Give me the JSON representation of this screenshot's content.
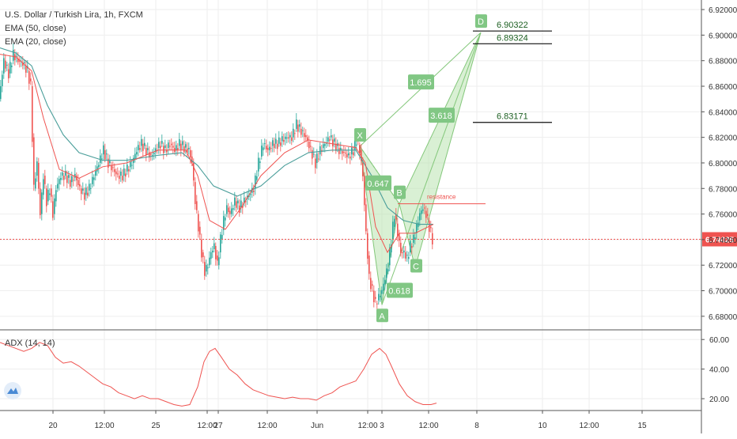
{
  "chart_data": {
    "type": "candlestick",
    "title": "U.S. Dollar / Turkish Lira, 1h, FXCM",
    "indicators": [
      "EMA (50, close)",
      "EMA (20, close)"
    ],
    "price_axis": {
      "ylim": [
        6.67,
        6.925
      ],
      "ticks": [
        "6.92000",
        "6.90000",
        "6.88000",
        "6.86000",
        "6.84000",
        "6.82000",
        "6.80000",
        "6.78000",
        "6.76000",
        "6.74000",
        "6.72000",
        "6.70000",
        "6.68000"
      ],
      "tick_values": [
        6.92,
        6.9,
        6.88,
        6.86,
        6.84,
        6.82,
        6.8,
        6.78,
        6.76,
        6.74,
        6.72,
        6.7,
        6.68
      ]
    },
    "time_axis": {
      "labels": [
        "20",
        "12:00",
        "25",
        "12:00",
        "27",
        "12:00",
        "Jun",
        "12:00",
        "3",
        "12:00",
        "8",
        "10",
        "12:00",
        "15"
      ],
      "label_index": [
        67,
        132,
        197,
        262,
        276,
        338,
        401,
        465,
        483,
        542,
        603,
        686,
        745,
        812
      ],
      "x_domain": [
        0,
        932
      ]
    },
    "last_price": {
      "value": 6.74025,
      "label": "6.74025",
      "color": "#ef5350"
    },
    "candles_close_path": [
      [
        0,
        6.85
      ],
      [
        6,
        6.88
      ],
      [
        12,
        6.87
      ],
      [
        18,
        6.885
      ],
      [
        24,
        6.88
      ],
      [
        30,
        6.878
      ],
      [
        36,
        6.872
      ],
      [
        40,
        6.86
      ],
      [
        44,
        6.78
      ],
      [
        48,
        6.8
      ],
      [
        52,
        6.76
      ],
      [
        56,
        6.79
      ],
      [
        60,
        6.77
      ],
      [
        64,
        6.78
      ],
      [
        68,
        6.76
      ],
      [
        72,
        6.78
      ],
      [
        78,
        6.79
      ],
      [
        84,
        6.79
      ],
      [
        90,
        6.785
      ],
      [
        96,
        6.79
      ],
      [
        102,
        6.78
      ],
      [
        108,
        6.775
      ],
      [
        114,
        6.78
      ],
      [
        120,
        6.79
      ],
      [
        126,
        6.8
      ],
      [
        132,
        6.81
      ],
      [
        138,
        6.8
      ],
      [
        144,
        6.795
      ],
      [
        150,
        6.79
      ],
      [
        156,
        6.79
      ],
      [
        162,
        6.795
      ],
      [
        168,
        6.8
      ],
      [
        174,
        6.81
      ],
      [
        180,
        6.815
      ],
      [
        186,
        6.81
      ],
      [
        192,
        6.805
      ],
      [
        198,
        6.81
      ],
      [
        204,
        6.815
      ],
      [
        210,
        6.81
      ],
      [
        216,
        6.815
      ],
      [
        222,
        6.81
      ],
      [
        228,
        6.815
      ],
      [
        234,
        6.812
      ],
      [
        240,
        6.81
      ],
      [
        244,
        6.8
      ],
      [
        248,
        6.77
      ],
      [
        252,
        6.75
      ],
      [
        256,
        6.73
      ],
      [
        260,
        6.715
      ],
      [
        264,
        6.72
      ],
      [
        268,
        6.73
      ],
      [
        272,
        6.735
      ],
      [
        276,
        6.72
      ],
      [
        280,
        6.74
      ],
      [
        284,
        6.755
      ],
      [
        288,
        6.765
      ],
      [
        292,
        6.76
      ],
      [
        298,
        6.77
      ],
      [
        304,
        6.765
      ],
      [
        310,
        6.77
      ],
      [
        316,
        6.775
      ],
      [
        322,
        6.78
      ],
      [
        328,
        6.8
      ],
      [
        334,
        6.815
      ],
      [
        340,
        6.81
      ],
      [
        346,
        6.815
      ],
      [
        352,
        6.815
      ],
      [
        358,
        6.818
      ],
      [
        364,
        6.82
      ],
      [
        370,
        6.82
      ],
      [
        376,
        6.83
      ],
      [
        382,
        6.825
      ],
      [
        388,
        6.82
      ],
      [
        394,
        6.81
      ],
      [
        400,
        6.8
      ],
      [
        406,
        6.81
      ],
      [
        412,
        6.815
      ],
      [
        418,
        6.82
      ],
      [
        424,
        6.815
      ],
      [
        430,
        6.81
      ],
      [
        436,
        6.808
      ],
      [
        442,
        6.805
      ],
      [
        448,
        6.81
      ],
      [
        452,
        6.818
      ],
      [
        456,
        6.81
      ],
      [
        460,
        6.79
      ],
      [
        464,
        6.745
      ],
      [
        468,
        6.71
      ],
      [
        472,
        6.7
      ],
      [
        476,
        6.69
      ],
      [
        480,
        6.695
      ],
      [
        484,
        6.7
      ],
      [
        488,
        6.71
      ],
      [
        492,
        6.72
      ],
      [
        496,
        6.74
      ],
      [
        500,
        6.76
      ],
      [
        504,
        6.745
      ],
      [
        508,
        6.73
      ],
      [
        512,
        6.73
      ],
      [
        516,
        6.725
      ],
      [
        520,
        6.735
      ],
      [
        524,
        6.74
      ],
      [
        528,
        6.75
      ],
      [
        532,
        6.76
      ],
      [
        536,
        6.765
      ],
      [
        540,
        6.76
      ],
      [
        544,
        6.75
      ],
      [
        548,
        6.74
      ]
    ],
    "ema50": [
      [
        0,
        6.89
      ],
      [
        20,
        6.886
      ],
      [
        40,
        6.876
      ],
      [
        60,
        6.845
      ],
      [
        80,
        6.822
      ],
      [
        100,
        6.808
      ],
      [
        130,
        6.802
      ],
      [
        160,
        6.802
      ],
      [
        200,
        6.806
      ],
      [
        230,
        6.808
      ],
      [
        250,
        6.798
      ],
      [
        270,
        6.782
      ],
      [
        300,
        6.774
      ],
      [
        330,
        6.782
      ],
      [
        360,
        6.798
      ],
      [
        390,
        6.808
      ],
      [
        420,
        6.81
      ],
      [
        450,
        6.81
      ],
      [
        470,
        6.79
      ],
      [
        490,
        6.765
      ],
      [
        510,
        6.755
      ],
      [
        530,
        6.752
      ],
      [
        548,
        6.752
      ]
    ],
    "ema20": [
      [
        0,
        6.885
      ],
      [
        20,
        6.883
      ],
      [
        40,
        6.872
      ],
      [
        55,
        6.835
      ],
      [
        75,
        6.795
      ],
      [
        100,
        6.788
      ],
      [
        130,
        6.797
      ],
      [
        160,
        6.8
      ],
      [
        200,
        6.81
      ],
      [
        235,
        6.81
      ],
      [
        250,
        6.79
      ],
      [
        265,
        6.755
      ],
      [
        285,
        6.748
      ],
      [
        305,
        6.765
      ],
      [
        330,
        6.79
      ],
      [
        360,
        6.808
      ],
      [
        390,
        6.818
      ],
      [
        420,
        6.815
      ],
      [
        450,
        6.812
      ],
      [
        462,
        6.8
      ],
      [
        475,
        6.75
      ],
      [
        490,
        6.73
      ],
      [
        505,
        6.745
      ],
      [
        525,
        6.745
      ],
      [
        548,
        6.752
      ]
    ],
    "harmonic_pattern": {
      "points": [
        {
          "label": "X",
          "x": 455,
          "y": 6.813
        },
        {
          "label": "A",
          "x": 483,
          "y": 6.689
        },
        {
          "label": "B",
          "x": 505,
          "y": 6.768
        },
        {
          "label": "C",
          "x": 525,
          "y": 6.718
        },
        {
          "label": "D",
          "x": 608,
          "y": 6.902
        }
      ],
      "ratios": [
        {
          "label": "0.647",
          "x": 478,
          "y": 6.784
        },
        {
          "label": "0.618",
          "x": 505,
          "y": 6.7
        },
        {
          "label": "1.695",
          "x": 532,
          "y": 6.863
        },
        {
          "label": "3.618",
          "x": 558,
          "y": 6.837
        }
      ],
      "fill": "#b9e3b0",
      "stroke": "#83c77a",
      "label_bg": "#81c784"
    },
    "levels": [
      {
        "label": "6.90322",
        "value": 6.90322,
        "x0": 598,
        "x1": 698
      },
      {
        "label": "6.89324",
        "value": 6.89324,
        "x0": 598,
        "x1": 698
      },
      {
        "label": "6.83171",
        "value": 6.83171,
        "x0": 598,
        "x1": 698
      }
    ],
    "resistance": {
      "label": "resistance",
      "value": 6.768,
      "x0": 503,
      "x1": 614,
      "color": "#ef5350"
    },
    "adx": {
      "label": "ADX (14, 14)",
      "ylim": [
        12,
        66
      ],
      "ticks": [
        "60.00",
        "40.00",
        "20.00"
      ],
      "tick_values": [
        60,
        40,
        20
      ],
      "series": [
        [
          0,
          58
        ],
        [
          10,
          56
        ],
        [
          20,
          54
        ],
        [
          30,
          52
        ],
        [
          40,
          54
        ],
        [
          50,
          58
        ],
        [
          60,
          56
        ],
        [
          70,
          48
        ],
        [
          80,
          44
        ],
        [
          90,
          45
        ],
        [
          100,
          42
        ],
        [
          110,
          38
        ],
        [
          120,
          34
        ],
        [
          130,
          30
        ],
        [
          140,
          28
        ],
        [
          150,
          24
        ],
        [
          160,
          22
        ],
        [
          170,
          20
        ],
        [
          180,
          22
        ],
        [
          190,
          20
        ],
        [
          200,
          20
        ],
        [
          210,
          18
        ],
        [
          220,
          16
        ],
        [
          230,
          15
        ],
        [
          240,
          16
        ],
        [
          250,
          28
        ],
        [
          258,
          45
        ],
        [
          265,
          52
        ],
        [
          272,
          54
        ],
        [
          280,
          48
        ],
        [
          290,
          40
        ],
        [
          300,
          36
        ],
        [
          310,
          30
        ],
        [
          320,
          26
        ],
        [
          330,
          24
        ],
        [
          340,
          22
        ],
        [
          350,
          21
        ],
        [
          360,
          20
        ],
        [
          370,
          21
        ],
        [
          380,
          20
        ],
        [
          390,
          20
        ],
        [
          400,
          19
        ],
        [
          410,
          22
        ],
        [
          420,
          24
        ],
        [
          430,
          28
        ],
        [
          440,
          30
        ],
        [
          450,
          32
        ],
        [
          460,
          40
        ],
        [
          470,
          50
        ],
        [
          480,
          54
        ],
        [
          488,
          50
        ],
        [
          495,
          42
        ],
        [
          505,
          30
        ],
        [
          515,
          22
        ],
        [
          525,
          18
        ],
        [
          535,
          16
        ],
        [
          545,
          16
        ],
        [
          552,
          17
        ]
      ],
      "color": "#ef5350"
    },
    "colors": {
      "up": "#26a69a",
      "down": "#ef5350",
      "ema50": "#4a9e9a",
      "ema20": "#ef5350",
      "grid": "#eeeeee"
    }
  }
}
